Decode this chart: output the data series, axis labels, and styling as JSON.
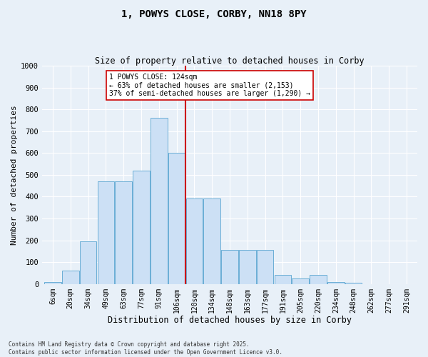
{
  "title_line1": "1, POWYS CLOSE, CORBY, NN18 8PY",
  "title_line2": "Size of property relative to detached houses in Corby",
  "xlabel": "Distribution of detached houses by size in Corby",
  "ylabel": "Number of detached properties",
  "categories": [
    "6sqm",
    "20sqm",
    "34sqm",
    "49sqm",
    "63sqm",
    "77sqm",
    "91sqm",
    "106sqm",
    "120sqm",
    "134sqm",
    "148sqm",
    "163sqm",
    "177sqm",
    "191sqm",
    "205sqm",
    "220sqm",
    "234sqm",
    "248sqm",
    "262sqm",
    "277sqm",
    "291sqm"
  ],
  "bar_heights": [
    10,
    60,
    195,
    470,
    470,
    520,
    760,
    600,
    390,
    390,
    155,
    155,
    155,
    40,
    25,
    40,
    10,
    5,
    0,
    0,
    0
  ],
  "bar_color": "#cce0f5",
  "bar_edge_color": "#6aaed6",
  "property_line_x": 7.5,
  "annotation_text": "1 POWYS CLOSE: 124sqm\n← 63% of detached houses are smaller (2,153)\n37% of semi-detached houses are larger (1,290) →",
  "annotation_box_color": "#ffffff",
  "annotation_box_edge": "#cc0000",
  "annotation_text_color": "#000000",
  "vline_color": "#cc0000",
  "ylim": [
    0,
    1000
  ],
  "yticks": [
    0,
    100,
    200,
    300,
    400,
    500,
    600,
    700,
    800,
    900,
    1000
  ],
  "background_color": "#e8f0f8",
  "grid_color": "#ffffff",
  "footer_line1": "Contains HM Land Registry data © Crown copyright and database right 2025.",
  "footer_line2": "Contains public sector information licensed under the Open Government Licence v3.0."
}
